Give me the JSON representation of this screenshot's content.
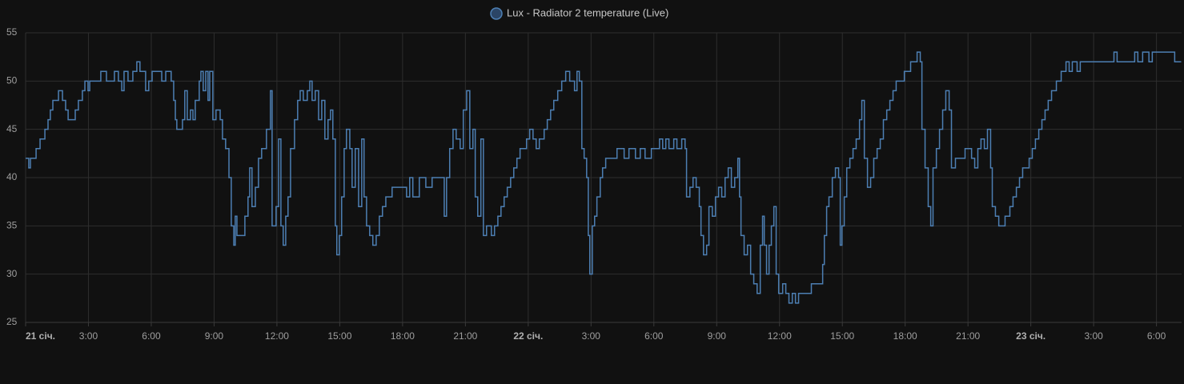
{
  "chart_data": {
    "type": "line",
    "step": true,
    "grid": true,
    "legend": "top",
    "xlim": [
      0,
      55.2
    ],
    "xticks": [
      {
        "value": 0,
        "label": "21 січ."
      },
      {
        "value": 3,
        "label": "3:00"
      },
      {
        "value": 6,
        "label": "6:00"
      },
      {
        "value": 9,
        "label": "9:00"
      },
      {
        "value": 12,
        "label": "12:00"
      },
      {
        "value": 15,
        "label": "15:00"
      },
      {
        "value": 18,
        "label": "18:00"
      },
      {
        "value": 21,
        "label": "21:00"
      },
      {
        "value": 24,
        "label": "22 січ."
      },
      {
        "value": 27,
        "label": "3:00"
      },
      {
        "value": 30,
        "label": "6:00"
      },
      {
        "value": 33,
        "label": "9:00"
      },
      {
        "value": 36,
        "label": "12:00"
      },
      {
        "value": 39,
        "label": "15:00"
      },
      {
        "value": 42,
        "label": "18:00"
      },
      {
        "value": 45,
        "label": "21:00"
      },
      {
        "value": 48,
        "label": "23 січ."
      },
      {
        "value": 51,
        "label": "3:00"
      },
      {
        "value": 54,
        "label": "6:00"
      }
    ],
    "ylim": [
      25,
      55
    ],
    "yticks": [
      25,
      30,
      35,
      40,
      45,
      50,
      55
    ],
    "x": [
      0.0,
      0.15,
      0.23,
      0.5,
      0.69,
      0.92,
      1.07,
      1.18,
      1.3,
      1.57,
      1.76,
      1.91,
      2.03,
      2.37,
      2.52,
      2.71,
      2.83,
      2.98,
      3.06,
      3.59,
      3.86,
      4.24,
      4.43,
      4.59,
      4.7,
      4.89,
      5.12,
      5.31,
      5.46,
      5.73,
      5.88,
      6.04,
      6.5,
      6.69,
      6.95,
      7.07,
      7.15,
      7.22,
      7.49,
      7.6,
      7.72,
      7.87,
      7.99,
      8.1,
      8.29,
      8.37,
      8.48,
      8.6,
      8.71,
      8.79,
      8.94,
      9.09,
      9.29,
      9.4,
      9.55,
      9.71,
      9.82,
      9.94,
      10.01,
      10.09,
      10.47,
      10.62,
      10.7,
      10.81,
      10.97,
      11.12,
      11.27,
      11.5,
      11.69,
      11.77,
      11.96,
      12.08,
      12.19,
      12.3,
      12.42,
      12.53,
      12.65,
      12.84,
      12.99,
      13.11,
      13.26,
      13.45,
      13.57,
      13.68,
      13.83,
      13.99,
      14.14,
      14.29,
      14.44,
      14.56,
      14.67,
      14.79,
      14.86,
      14.98,
      15.09,
      15.21,
      15.32,
      15.48,
      15.59,
      15.74,
      15.9,
      16.05,
      16.16,
      16.28,
      16.43,
      16.58,
      16.74,
      16.89,
      17.04,
      17.2,
      17.5,
      18.19,
      18.34,
      18.49,
      18.8,
      19.11,
      19.41,
      19.99,
      20.1,
      20.25,
      20.41,
      20.56,
      20.75,
      20.9,
      21.06,
      21.21,
      21.36,
      21.47,
      21.59,
      21.74,
      21.86,
      22.01,
      22.24,
      22.39,
      22.55,
      22.7,
      22.85,
      23.0,
      23.16,
      23.31,
      23.46,
      23.61,
      23.92,
      24.07,
      24.23,
      24.38,
      24.53,
      24.76,
      24.91,
      25.07,
      25.22,
      25.41,
      25.6,
      25.79,
      25.98,
      26.21,
      26.33,
      26.44,
      26.56,
      26.67,
      26.79,
      26.87,
      26.94,
      27.06,
      27.17,
      27.28,
      27.44,
      27.55,
      27.7,
      28.24,
      28.58,
      28.81,
      29.12,
      29.35,
      29.58,
      29.88,
      30.27,
      30.42,
      30.57,
      30.72,
      30.95,
      31.1,
      31.33,
      31.49,
      31.56,
      31.72,
      31.87,
      32.02,
      32.17,
      32.25,
      32.37,
      32.52,
      32.63,
      32.79,
      32.94,
      33.09,
      33.24,
      33.4,
      33.55,
      33.7,
      33.86,
      34.01,
      34.09,
      34.16,
      34.31,
      34.47,
      34.62,
      34.77,
      34.93,
      35.08,
      35.19,
      35.27,
      35.38,
      35.5,
      35.61,
      35.73,
      35.84,
      35.96,
      36.15,
      36.3,
      36.45,
      36.61,
      36.76,
      36.91,
      37.52,
      38.06,
      38.14,
      38.25,
      38.36,
      38.52,
      38.67,
      38.82,
      38.9,
      38.98,
      39.09,
      39.21,
      39.36,
      39.51,
      39.66,
      39.82,
      39.93,
      40.05,
      40.2,
      40.35,
      40.5,
      40.66,
      40.81,
      40.96,
      41.12,
      41.27,
      41.42,
      41.57,
      41.96,
      42.26,
      42.57,
      42.72,
      42.8,
      42.95,
      43.1,
      43.22,
      43.33,
      43.49,
      43.64,
      43.79,
      43.94,
      44.1,
      44.21,
      44.4,
      44.86,
      45.17,
      45.32,
      45.47,
      45.62,
      45.78,
      45.93,
      46.08,
      46.16,
      46.31,
      46.47,
      46.77,
      47.0,
      47.15,
      47.31,
      47.46,
      47.61,
      47.92,
      48.07,
      48.22,
      48.38,
      48.53,
      48.68,
      48.83,
      48.99,
      49.22,
      49.45,
      49.68,
      49.83,
      49.98,
      50.21,
      50.36,
      51.97,
      52.12,
      52.96,
      53.11,
      53.34,
      53.64,
      53.8,
      54.87,
      55.18
    ],
    "series": [
      {
        "name": "Lux - Radiator 2 temperature (Live)",
        "color": "#4d7fb3",
        "values": [
          42,
          41,
          42,
          43,
          44,
          45,
          46,
          47,
          48,
          49,
          48,
          47,
          46,
          47,
          48,
          49,
          50,
          49,
          50,
          51,
          50,
          51,
          50,
          49,
          51,
          50,
          51,
          52,
          51,
          49,
          50,
          51,
          50,
          51,
          50,
          48,
          46,
          45,
          46,
          49,
          46,
          47,
          46,
          48,
          50,
          51,
          49,
          51,
          48,
          51,
          46,
          47,
          46,
          44,
          43,
          40,
          35,
          33,
          36,
          34,
          36,
          38,
          41,
          37,
          39,
          42,
          43,
          45,
          49,
          35,
          37,
          44,
          35,
          33,
          36,
          38,
          43,
          46,
          48,
          49,
          48,
          49,
          50,
          48,
          49,
          46,
          48,
          44,
          46,
          47,
          44,
          35,
          32,
          34,
          38,
          43,
          45,
          43,
          39,
          43,
          37,
          44,
          38,
          35,
          34,
          33,
          34,
          36,
          37,
          38,
          39,
          38,
          40,
          38,
          40,
          39,
          40,
          36,
          40,
          43,
          45,
          44,
          43,
          47,
          49,
          43,
          45,
          38,
          36,
          44,
          34,
          35,
          34,
          35,
          36,
          37,
          38,
          39,
          40,
          41,
          42,
          43,
          44,
          45,
          44,
          43,
          44,
          45,
          46,
          47,
          48,
          49,
          50,
          51,
          50,
          49,
          51,
          50,
          43,
          42,
          40,
          34,
          30,
          35,
          36,
          38,
          40,
          41,
          42,
          43,
          42,
          43,
          42,
          43,
          42,
          43,
          44,
          43,
          44,
          43,
          44,
          43,
          44,
          43,
          38,
          39,
          40,
          39,
          37,
          34,
          32,
          33,
          37,
          36,
          38,
          39,
          38,
          40,
          41,
          39,
          40,
          42,
          38,
          34,
          32,
          33,
          30,
          29,
          28,
          33,
          36,
          33,
          30,
          33,
          35,
          37,
          30,
          28,
          29,
          28,
          27,
          28,
          27,
          28,
          29,
          31,
          34,
          37,
          38,
          40,
          41,
          40,
          33,
          35,
          38,
          41,
          42,
          43,
          44,
          46,
          48,
          42,
          39,
          40,
          42,
          43,
          44,
          46,
          47,
          48,
          49,
          50,
          51,
          52,
          53,
          52,
          45,
          41,
          37,
          35,
          41,
          43,
          45,
          47,
          49,
          47,
          41,
          42,
          43,
          42,
          41,
          43,
          44,
          43,
          45,
          41,
          37,
          36,
          35,
          36,
          37,
          38,
          39,
          40,
          41,
          42,
          43,
          44,
          45,
          46,
          47,
          48,
          49,
          50,
          51,
          52,
          51,
          52,
          51,
          52,
          53,
          52,
          53,
          52,
          53,
          52,
          53,
          52,
          52
        ]
      }
    ]
  }
}
